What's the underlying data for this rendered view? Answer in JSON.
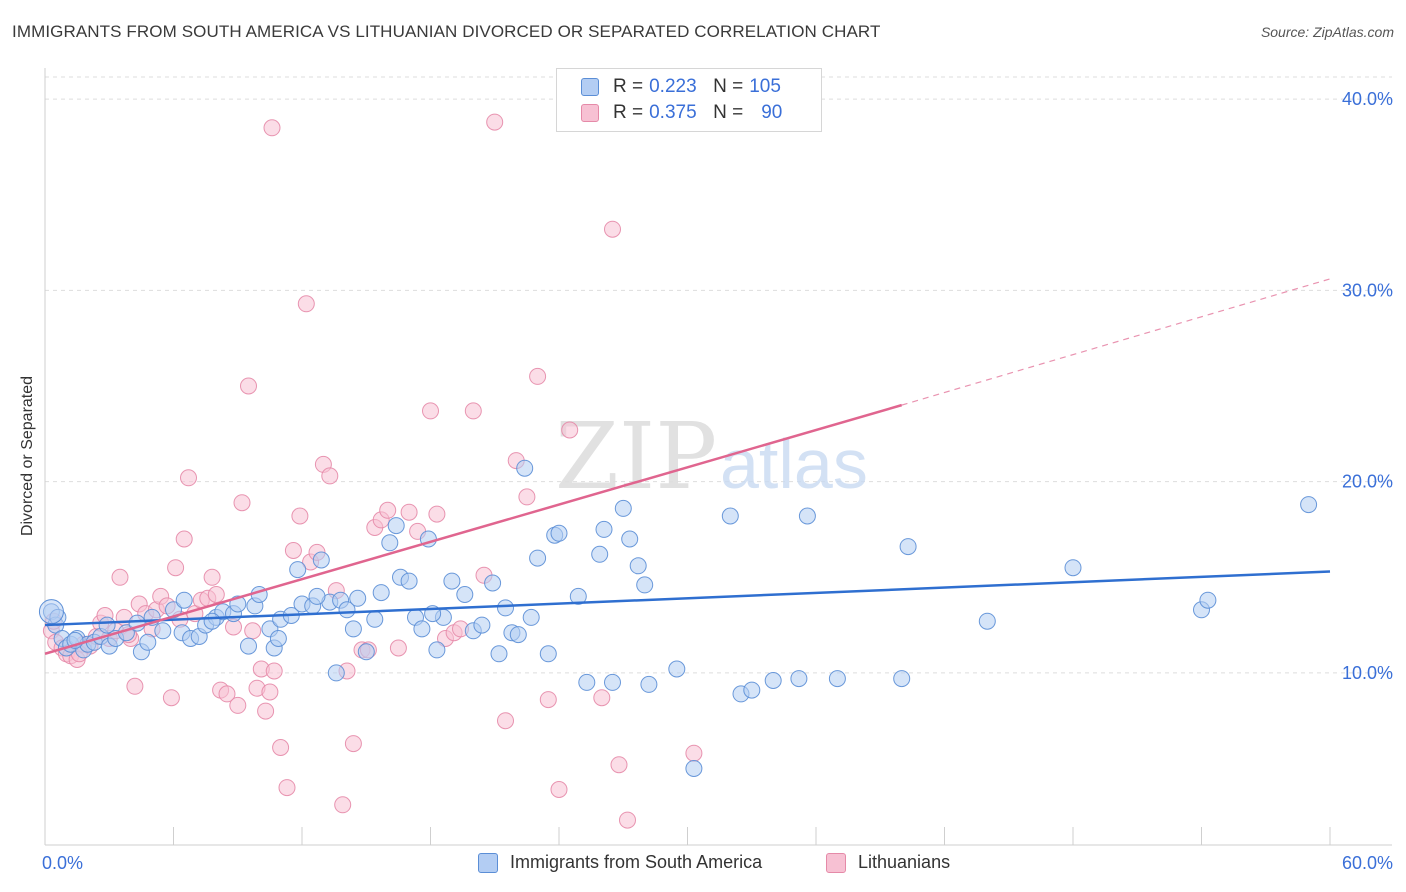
{
  "header": {
    "title": "IMMIGRANTS FROM SOUTH AMERICA VS LITHUANIAN DIVORCED OR SEPARATED CORRELATION CHART",
    "source": "Source: ZipAtlas.com"
  },
  "watermark": {
    "zip": "ZIP",
    "atlas": "atlas"
  },
  "legend": {
    "rows": [
      {
        "r_label": "R =",
        "r_value": "0.223",
        "n_label": "N =",
        "n_value": "105"
      },
      {
        "r_label": "R =",
        "r_value": "0.375",
        "n_label": "N =",
        "n_value": "90"
      }
    ]
  },
  "bottom_legend": {
    "series1": "Immigrants from South America",
    "series2": "Lithuanians"
  },
  "colors": {
    "blue_fill": "#b3cdf3",
    "blue_stroke": "#5b8ed6",
    "blue_line": "#2f6fd0",
    "pink_fill": "#f7c1d3",
    "pink_stroke": "#e58aa8",
    "pink_line": "#e0658f",
    "tick_text": "#3a6fd8",
    "grid": "#dddddd"
  },
  "chart_data": {
    "type": "scatter",
    "title": "IMMIGRANTS FROM SOUTH AMERICA VS LITHUANIAN DIVORCED OR SEPARATED CORRELATION CHART",
    "xlabel": "",
    "ylabel": "Divorced or Separated",
    "xlim": [
      0,
      60
    ],
    "ylim": [
      1,
      41
    ],
    "x_tick_labels": [
      "0.0%",
      "60.0%"
    ],
    "y_ticks": [
      10,
      20,
      30,
      40
    ],
    "y_tick_labels": [
      "10.0%",
      "20.0%",
      "30.0%",
      "40.0%"
    ],
    "grid": true,
    "legend_position": "top-center",
    "series": [
      {
        "name": "Immigrants from South America",
        "r": 0.223,
        "n": 105,
        "trend": {
          "x0": 0,
          "y0": 12.5,
          "x1": 60,
          "y1": 15.3
        },
        "points": [
          [
            0.3,
            13.2
          ],
          [
            0.5,
            12.5
          ],
          [
            0.8,
            11.8
          ],
          [
            1.0,
            11.3
          ],
          [
            1.2,
            11.5
          ],
          [
            1.5,
            11.8
          ],
          [
            1.8,
            11.2
          ],
          [
            2.0,
            11.5
          ],
          [
            2.3,
            11.6
          ],
          [
            2.6,
            11.9
          ],
          [
            3.0,
            11.4
          ],
          [
            3.3,
            11.8
          ],
          [
            3.8,
            12.1
          ],
          [
            4.3,
            12.6
          ],
          [
            4.5,
            11.1
          ],
          [
            5.0,
            12.9
          ],
          [
            5.5,
            12.2
          ],
          [
            6.0,
            13.3
          ],
          [
            6.4,
            12.1
          ],
          [
            6.5,
            13.8
          ],
          [
            6.8,
            11.8
          ],
          [
            7.2,
            11.9
          ],
          [
            7.5,
            12.5
          ],
          [
            8.0,
            12.9
          ],
          [
            8.3,
            13.2
          ],
          [
            8.8,
            13.1
          ],
          [
            9.0,
            13.6
          ],
          [
            9.5,
            11.4
          ],
          [
            9.8,
            13.5
          ],
          [
            10.0,
            14.1
          ],
          [
            10.5,
            12.3
          ],
          [
            10.7,
            11.3
          ],
          [
            10.9,
            11.8
          ],
          [
            11.0,
            12.8
          ],
          [
            11.5,
            13.0
          ],
          [
            11.8,
            15.4
          ],
          [
            12.0,
            13.6
          ],
          [
            12.5,
            13.5
          ],
          [
            12.9,
            15.9
          ],
          [
            13.3,
            13.7
          ],
          [
            13.6,
            10.0
          ],
          [
            13.8,
            13.8
          ],
          [
            14.1,
            13.3
          ],
          [
            14.4,
            12.3
          ],
          [
            14.6,
            13.9
          ],
          [
            15.0,
            11.1
          ],
          [
            15.4,
            12.8
          ],
          [
            15.7,
            14.2
          ],
          [
            16.1,
            16.8
          ],
          [
            16.4,
            17.7
          ],
          [
            16.6,
            15.0
          ],
          [
            17.0,
            14.8
          ],
          [
            17.3,
            12.9
          ],
          [
            17.6,
            12.3
          ],
          [
            17.9,
            17.0
          ],
          [
            18.3,
            11.2
          ],
          [
            18.6,
            12.9
          ],
          [
            19.0,
            14.8
          ],
          [
            19.6,
            14.1
          ],
          [
            20.0,
            12.2
          ],
          [
            20.4,
            12.5
          ],
          [
            20.9,
            14.7
          ],
          [
            21.2,
            11.0
          ],
          [
            21.5,
            13.4
          ],
          [
            21.8,
            12.1
          ],
          [
            22.1,
            12.0
          ],
          [
            22.4,
            20.7
          ],
          [
            22.7,
            12.9
          ],
          [
            23.0,
            16.0
          ],
          [
            23.5,
            11.0
          ],
          [
            23.8,
            17.2
          ],
          [
            24.0,
            17.3
          ],
          [
            24.9,
            14.0
          ],
          [
            25.3,
            9.5
          ],
          [
            25.9,
            16.2
          ],
          [
            26.1,
            17.5
          ],
          [
            26.5,
            9.5
          ],
          [
            27.0,
            18.6
          ],
          [
            27.3,
            17.0
          ],
          [
            27.7,
            15.6
          ],
          [
            28.2,
            9.4
          ],
          [
            28.0,
            14.6
          ],
          [
            29.5,
            10.2
          ],
          [
            30.3,
            5.0
          ],
          [
            32.0,
            18.2
          ],
          [
            32.5,
            8.9
          ],
          [
            33.0,
            9.1
          ],
          [
            34.0,
            9.6
          ],
          [
            35.2,
            9.7
          ],
          [
            35.6,
            18.2
          ],
          [
            37.0,
            9.7
          ],
          [
            40.0,
            9.7
          ],
          [
            40.3,
            16.6
          ],
          [
            44.0,
            12.7
          ],
          [
            48.0,
            15.5
          ],
          [
            54.0,
            13.3
          ],
          [
            54.3,
            13.8
          ],
          [
            59.0,
            18.8
          ],
          [
            0.6,
            12.9
          ],
          [
            1.4,
            11.7
          ],
          [
            2.9,
            12.5
          ],
          [
            4.8,
            11.6
          ],
          [
            7.8,
            12.7
          ],
          [
            12.7,
            14.0
          ],
          [
            18.1,
            13.1
          ]
        ]
      },
      {
        "name": "Lithuanians",
        "r": 0.375,
        "n": 90,
        "trend": {
          "x0": 0,
          "y0": 11.0,
          "x1": 40,
          "y1": 24.0,
          "dashed_to_x": 60,
          "dashed_to_y": 30.6
        },
        "points": [
          [
            0.3,
            12.2
          ],
          [
            0.5,
            11.6
          ],
          [
            0.8,
            11.3
          ],
          [
            1.0,
            11.0
          ],
          [
            1.2,
            10.9
          ],
          [
            1.5,
            10.7
          ],
          [
            1.8,
            11.5
          ],
          [
            2.1,
            11.4
          ],
          [
            2.4,
            11.9
          ],
          [
            2.6,
            12.6
          ],
          [
            2.8,
            13.0
          ],
          [
            3.0,
            11.8
          ],
          [
            3.3,
            12.2
          ],
          [
            3.5,
            15.0
          ],
          [
            3.7,
            12.9
          ],
          [
            4.0,
            11.8
          ],
          [
            4.2,
            9.3
          ],
          [
            4.4,
            13.6
          ],
          [
            4.7,
            13.1
          ],
          [
            5.0,
            12.3
          ],
          [
            5.2,
            13.3
          ],
          [
            5.4,
            14.0
          ],
          [
            5.7,
            13.5
          ],
          [
            5.9,
            8.7
          ],
          [
            6.1,
            15.5
          ],
          [
            6.3,
            12.8
          ],
          [
            6.5,
            17.0
          ],
          [
            6.7,
            20.2
          ],
          [
            7.0,
            13.1
          ],
          [
            7.3,
            13.8
          ],
          [
            7.6,
            13.9
          ],
          [
            7.8,
            15.0
          ],
          [
            8.0,
            14.1
          ],
          [
            8.2,
            9.1
          ],
          [
            8.5,
            8.9
          ],
          [
            8.8,
            12.4
          ],
          [
            9.0,
            8.3
          ],
          [
            9.2,
            18.9
          ],
          [
            9.5,
            25.0
          ],
          [
            9.7,
            12.2
          ],
          [
            9.9,
            9.2
          ],
          [
            10.1,
            10.2
          ],
          [
            10.3,
            8.0
          ],
          [
            10.5,
            9.0
          ],
          [
            10.7,
            10.1
          ],
          [
            11.0,
            6.1
          ],
          [
            11.3,
            4.0
          ],
          [
            11.6,
            16.4
          ],
          [
            11.9,
            18.2
          ],
          [
            12.2,
            29.3
          ],
          [
            12.4,
            15.8
          ],
          [
            12.7,
            16.3
          ],
          [
            13.0,
            20.9
          ],
          [
            13.3,
            20.3
          ],
          [
            13.6,
            14.3
          ],
          [
            13.9,
            3.1
          ],
          [
            14.1,
            10.1
          ],
          [
            14.4,
            6.3
          ],
          [
            14.8,
            11.2
          ],
          [
            15.1,
            11.2
          ],
          [
            15.4,
            17.6
          ],
          [
            15.7,
            18.0
          ],
          [
            16.0,
            18.5
          ],
          [
            16.5,
            11.3
          ],
          [
            17.0,
            18.4
          ],
          [
            17.4,
            17.4
          ],
          [
            18.0,
            23.7
          ],
          [
            18.3,
            18.3
          ],
          [
            18.7,
            11.8
          ],
          [
            19.1,
            12.1
          ],
          [
            19.4,
            12.3
          ],
          [
            20.0,
            23.7
          ],
          [
            20.5,
            15.1
          ],
          [
            21.0,
            38.8
          ],
          [
            21.5,
            7.5
          ],
          [
            22.0,
            21.1
          ],
          [
            22.5,
            19.2
          ],
          [
            23.0,
            25.5
          ],
          [
            23.5,
            8.6
          ],
          [
            24.0,
            3.9
          ],
          [
            24.5,
            22.7
          ],
          [
            26.0,
            8.7
          ],
          [
            26.5,
            33.2
          ],
          [
            26.8,
            5.2
          ],
          [
            27.2,
            2.3
          ],
          [
            30.3,
            5.8
          ],
          [
            0.4,
            12.7
          ],
          [
            1.6,
            11.0
          ],
          [
            3.9,
            12.0
          ],
          [
            10.6,
            38.5
          ]
        ]
      }
    ]
  }
}
